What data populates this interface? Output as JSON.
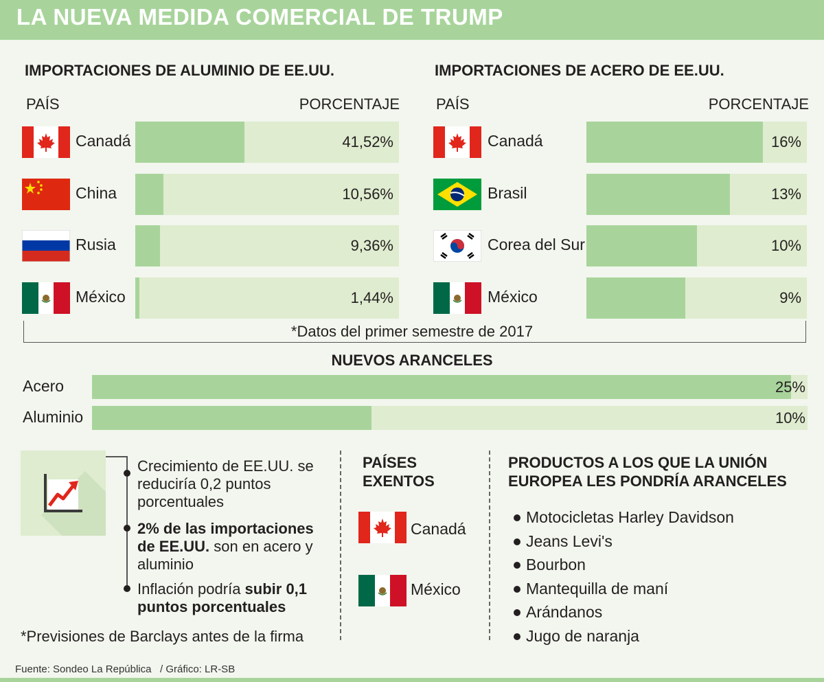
{
  "title": "LA NUEVA MEDIDA COMERCIAL DE TRUMP",
  "chart_data": [
    {
      "type": "bar",
      "title": "IMPORTACIONES DE ALUMINIO DE EE.UU.",
      "xlabel": "PAÍS",
      "ylabel": "PORCENTAJE",
      "categories": [
        "Canadá",
        "China",
        "Rusia",
        "México"
      ],
      "values": [
        41.52,
        10.56,
        9.36,
        1.44
      ],
      "labels": [
        "41,52%",
        "10,56%",
        "9,36%",
        "1,44%"
      ],
      "flags": [
        "canada-flag",
        "china-flag",
        "russia-flag",
        "mexico-flag"
      ],
      "max": 100
    },
    {
      "type": "bar",
      "title": "IMPORTACIONES DE ACERO DE EE.UU.",
      "xlabel": "PAÍS",
      "ylabel": "PORCENTAJE",
      "categories": [
        "Canadá",
        "Brasil",
        "Corea del Sur",
        "México"
      ],
      "values": [
        16,
        13,
        10,
        9
      ],
      "labels": [
        "16%",
        "13%",
        "10%",
        "9%"
      ],
      "flags": [
        "canada-flag",
        "brazil-flag",
        "south-korea-flag",
        "mexico-flag"
      ],
      "max": 20
    },
    {
      "type": "bar",
      "title": "NUEVOS ARANCELES",
      "categories": [
        "Acero",
        "Aluminio"
      ],
      "values": [
        25,
        10
      ],
      "labels": [
        "25%",
        "10%"
      ],
      "max": 25.6
    }
  ],
  "note_semester": "*Datos del primer semestre de 2017",
  "forecast": {
    "icon": "growth-chart-icon",
    "items": [
      {
        "normal": "Crecimiento de EE.UU. se reduciría 0,2 puntos porcentuales",
        "bold": ""
      },
      {
        "bold": "2% de las importaciones de EE.UU.",
        "normal": " son en acero y aluminio"
      },
      {
        "normal": "Inflación podría ",
        "bold": "subir 0,1 puntos porcentuales"
      }
    ],
    "note": "*Previsiones de Barclays antes de la firma"
  },
  "exempt": {
    "title_line1": "PAÍSES",
    "title_line2": "EXENTOS",
    "countries": [
      "Canadá",
      "México"
    ]
  },
  "products": {
    "title_line1": "PRODUCTOS A LOS QUE LA UNIÓN",
    "title_line2": "EUROPEA LES PONDRÍA ARANCELES",
    "items": [
      "Motocicletas Harley Davidson",
      "Jeans Levi's",
      "Bourbon",
      "Mantequilla de maní",
      "Arándanos",
      "Jugo de naranja"
    ]
  },
  "footer": {
    "source": "Fuente: Sondeo La República",
    "credit": "/ Gráfico: LR-SB"
  },
  "colors": {
    "accent": "#a8d49b",
    "bar_background": "#dfeccf",
    "page_background": "#f2f6ee"
  }
}
